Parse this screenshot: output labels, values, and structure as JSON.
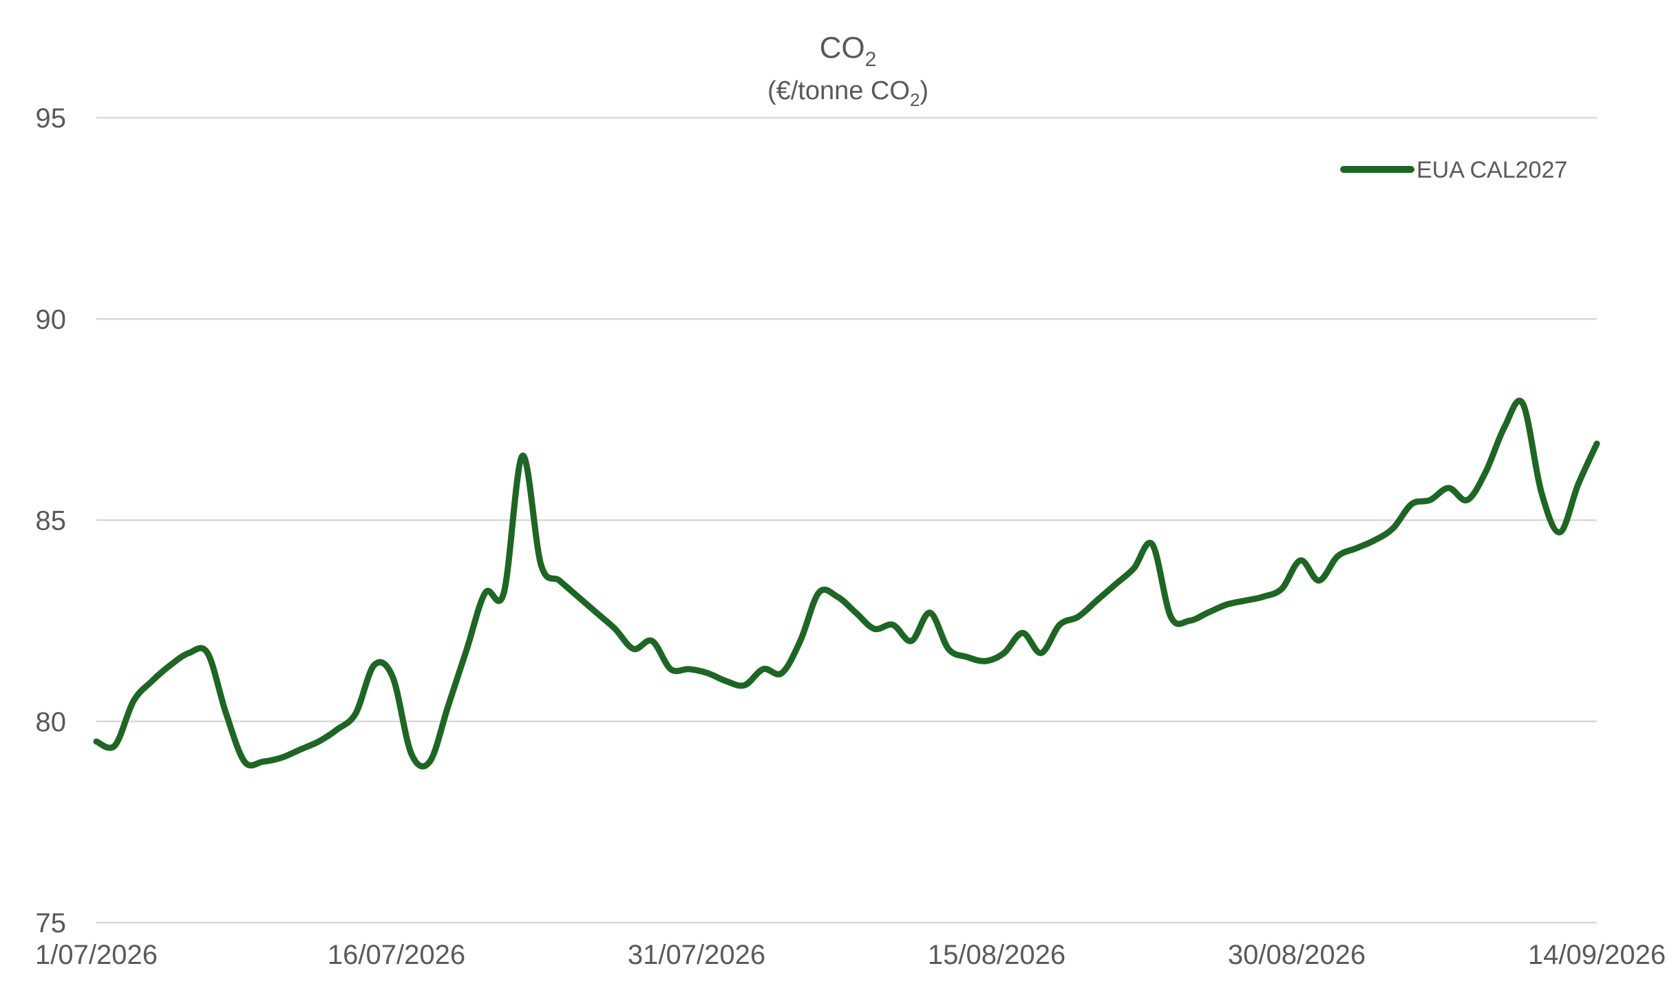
{
  "chart_data": {
    "type": "line",
    "title": "CO",
    "title_subscript": "2",
    "subtitle_prefix": "(€/tonne CO",
    "subtitle_subscript": "2",
    "subtitle_suffix": ")",
    "xlabel": "",
    "ylabel": "",
    "ylim": [
      75,
      95
    ],
    "yticks": [
      75,
      80,
      85,
      90,
      95
    ],
    "xticks": [
      "1/07/2026",
      "16/07/2026",
      "31/07/2026",
      "15/08/2026",
      "30/08/2026",
      "14/09/2026"
    ],
    "xrange": [
      "2026-07-01",
      "2026-09-18"
    ],
    "grid": true,
    "legend_position": "top-right",
    "series": [
      {
        "name": "EUA CAL2027",
        "color": "#1e6623",
        "points": [
          [
            "2026-07-01",
            79.5
          ],
          [
            "2026-07-02",
            79.4
          ],
          [
            "2026-07-03",
            80.5
          ],
          [
            "2026-07-04",
            81.0
          ],
          [
            "2026-07-05",
            81.4
          ],
          [
            "2026-07-06",
            81.7
          ],
          [
            "2026-07-07",
            81.7
          ],
          [
            "2026-07-08",
            80.2
          ],
          [
            "2026-07-09",
            79.0
          ],
          [
            "2026-07-10",
            79.0
          ],
          [
            "2026-07-11",
            79.1
          ],
          [
            "2026-07-12",
            79.3
          ],
          [
            "2026-07-13",
            79.5
          ],
          [
            "2026-07-14",
            79.8
          ],
          [
            "2026-07-15",
            80.2
          ],
          [
            "2026-07-16",
            81.4
          ],
          [
            "2026-07-17",
            81.1
          ],
          [
            "2026-07-18",
            79.2
          ],
          [
            "2026-07-19",
            79.0
          ],
          [
            "2026-07-20",
            80.4
          ],
          [
            "2026-07-21",
            81.8
          ],
          [
            "2026-07-22",
            83.2
          ],
          [
            "2026-07-23",
            83.2
          ],
          [
            "2026-07-24",
            86.6
          ],
          [
            "2026-07-25",
            83.9
          ],
          [
            "2026-07-26",
            83.5
          ],
          [
            "2026-07-27",
            83.1
          ],
          [
            "2026-07-28",
            82.7
          ],
          [
            "2026-07-29",
            82.3
          ],
          [
            "2026-07-30",
            81.8
          ],
          [
            "2026-07-31",
            82.0
          ],
          [
            "2026-08-01",
            81.3
          ],
          [
            "2026-08-02",
            81.3
          ],
          [
            "2026-08-03",
            81.2
          ],
          [
            "2026-08-04",
            81.0
          ],
          [
            "2026-08-05",
            80.9
          ],
          [
            "2026-08-06",
            81.3
          ],
          [
            "2026-08-07",
            81.2
          ],
          [
            "2026-08-08",
            82.0
          ],
          [
            "2026-08-09",
            83.2
          ],
          [
            "2026-08-10",
            83.1
          ],
          [
            "2026-08-11",
            82.7
          ],
          [
            "2026-08-12",
            82.3
          ],
          [
            "2026-08-13",
            82.4
          ],
          [
            "2026-08-14",
            82.0
          ],
          [
            "2026-08-15",
            82.7
          ],
          [
            "2026-08-16",
            81.8
          ],
          [
            "2026-08-17",
            81.6
          ],
          [
            "2026-08-18",
            81.5
          ],
          [
            "2026-08-19",
            81.7
          ],
          [
            "2026-08-20",
            82.2
          ],
          [
            "2026-08-21",
            81.7
          ],
          [
            "2026-08-22",
            82.4
          ],
          [
            "2026-08-23",
            82.6
          ],
          [
            "2026-08-24",
            83.0
          ],
          [
            "2026-08-25",
            83.4
          ],
          [
            "2026-08-26",
            83.8
          ],
          [
            "2026-08-27",
            84.4
          ],
          [
            "2026-08-28",
            82.6
          ],
          [
            "2026-08-29",
            82.5
          ],
          [
            "2026-08-30",
            82.7
          ],
          [
            "2026-08-31",
            82.9
          ],
          [
            "2026-09-01",
            83.0
          ],
          [
            "2026-09-02",
            83.1
          ],
          [
            "2026-09-03",
            83.3
          ],
          [
            "2026-09-04",
            84.0
          ],
          [
            "2026-09-05",
            83.5
          ],
          [
            "2026-09-06",
            84.1
          ],
          [
            "2026-09-07",
            84.3
          ],
          [
            "2026-09-08",
            84.5
          ],
          [
            "2026-09-09",
            84.8
          ],
          [
            "2026-09-10",
            85.4
          ],
          [
            "2026-09-11",
            85.5
          ],
          [
            "2026-09-12",
            85.8
          ],
          [
            "2026-09-13",
            85.5
          ],
          [
            "2026-09-14",
            86.2
          ],
          [
            "2026-09-15",
            87.3
          ],
          [
            "2026-09-16",
            87.9
          ],
          [
            "2026-09-17",
            85.7
          ],
          [
            "2026-09-18",
            84.7
          ],
          [
            "2026-09-19",
            85.9
          ],
          [
            "2026-09-20",
            86.9
          ]
        ]
      }
    ]
  }
}
